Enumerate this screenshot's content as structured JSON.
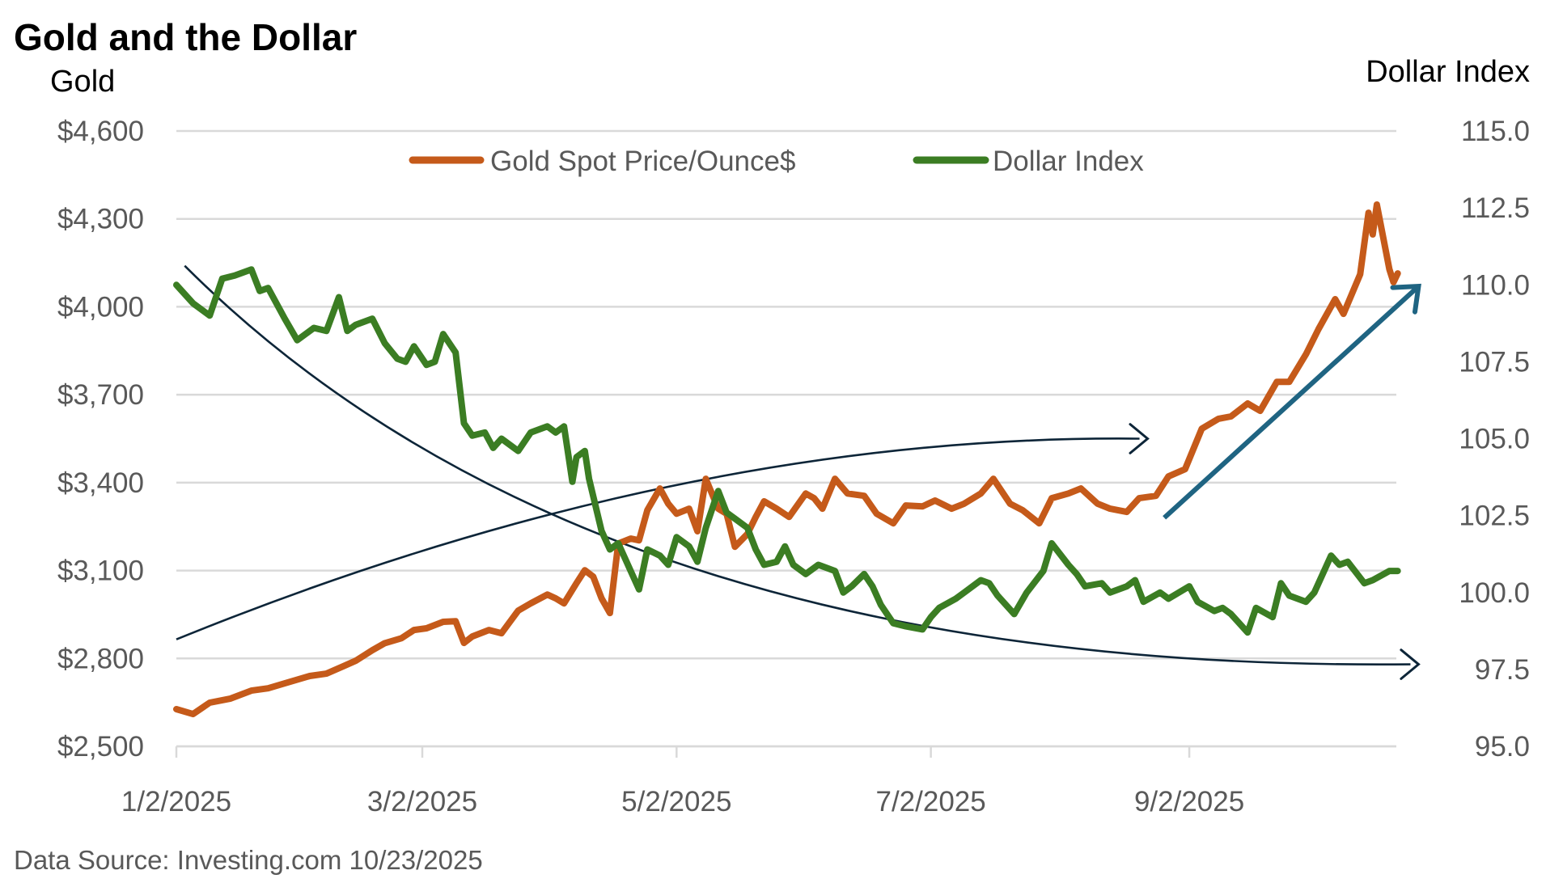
{
  "chart_data": {
    "type": "line",
    "title": "Gold and the Dollar",
    "y_left_label": "Gold",
    "y_right_label": "Dollar Index",
    "y_left_ticks": [
      "$4,600",
      "$4,300",
      "$4,000",
      "$3,700",
      "$3,400",
      "$3,100",
      "$2,800",
      "$2,500"
    ],
    "y_left_tick_values": [
      4600,
      4300,
      4000,
      3700,
      3400,
      3100,
      2800,
      2500
    ],
    "y_right_ticks": [
      "115.0",
      "112.5",
      "110.0",
      "107.5",
      "105.0",
      "102.5",
      "100.0",
      "97.5",
      "95.0"
    ],
    "y_right_tick_values": [
      115.0,
      112.5,
      110.0,
      107.5,
      105.0,
      102.5,
      100.0,
      97.5,
      95.0
    ],
    "ylim_left": [
      2500,
      4600
    ],
    "ylim_right": [
      95.0,
      115.0
    ],
    "x_ticks": [
      "1/2/2025",
      "3/2/2025",
      "5/2/2025",
      "7/2/2025",
      "9/2/2025"
    ],
    "x_tick_dates": [
      "2025-01-02",
      "2025-03-02",
      "2025-05-02",
      "2025-07-02",
      "2025-09-02"
    ],
    "xlim": [
      "2025-01-02",
      "2025-11-05"
    ],
    "grid": true,
    "legend_position": "top-center",
    "legend": [
      {
        "name": "Gold Spot Price/Ounce$",
        "color": "#C55A1A",
        "axis": "left"
      },
      {
        "name": "Dollar Index",
        "color": "#3B7D23",
        "axis": "right"
      }
    ],
    "series": [
      {
        "name": "Gold Spot Price/Ounce$",
        "axis": "left",
        "color": "#C55A1A",
        "x": [
          "2025-01-02",
          "2025-01-06",
          "2025-01-10",
          "2025-01-15",
          "2025-01-20",
          "2025-01-24",
          "2025-01-28",
          "2025-02-03",
          "2025-02-07",
          "2025-02-11",
          "2025-02-14",
          "2025-02-18",
          "2025-02-21",
          "2025-02-25",
          "2025-02-28",
          "2025-03-03",
          "2025-03-05",
          "2025-03-07",
          "2025-03-10",
          "2025-03-12",
          "2025-03-14",
          "2025-03-18",
          "2025-03-21",
          "2025-03-25",
          "2025-03-28",
          "2025-04-01",
          "2025-04-03",
          "2025-04-05",
          "2025-04-08",
          "2025-04-10",
          "2025-04-12",
          "2025-04-14",
          "2025-04-16",
          "2025-04-18",
          "2025-04-21",
          "2025-04-23",
          "2025-04-25",
          "2025-04-28",
          "2025-04-30",
          "2025-05-02",
          "2025-05-05",
          "2025-05-07",
          "2025-05-09",
          "2025-05-12",
          "2025-05-14",
          "2025-05-16",
          "2025-05-19",
          "2025-05-21",
          "2025-05-23",
          "2025-05-26",
          "2025-05-29",
          "2025-06-02",
          "2025-06-04",
          "2025-06-06",
          "2025-06-09",
          "2025-06-12",
          "2025-06-16",
          "2025-06-19",
          "2025-06-23",
          "2025-06-26",
          "2025-06-30",
          "2025-07-03",
          "2025-07-07",
          "2025-07-10",
          "2025-07-14",
          "2025-07-17",
          "2025-07-21",
          "2025-07-24",
          "2025-07-28",
          "2025-07-31",
          "2025-08-04",
          "2025-08-07",
          "2025-08-11",
          "2025-08-14",
          "2025-08-18",
          "2025-08-21",
          "2025-08-25",
          "2025-08-28",
          "2025-09-01",
          "2025-09-03",
          "2025-09-05",
          "2025-09-09",
          "2025-09-12",
          "2025-09-16",
          "2025-09-19",
          "2025-09-23",
          "2025-09-26",
          "2025-09-30",
          "2025-10-03",
          "2025-10-07",
          "2025-10-09",
          "2025-10-13",
          "2025-10-15",
          "2025-10-16",
          "2025-10-17",
          "2025-10-20",
          "2025-10-21",
          "2025-10-22"
        ],
        "values": [
          2627,
          2610,
          2649,
          2663,
          2690,
          2698,
          2715,
          2740,
          2748,
          2773,
          2792,
          2828,
          2852,
          2869,
          2897,
          2903,
          2914,
          2925,
          2927,
          2853,
          2875,
          2897,
          2886,
          2963,
          2988,
          3018,
          3005,
          2988,
          3057,
          3101,
          3079,
          3005,
          2955,
          3192,
          3209,
          3203,
          3306,
          3380,
          3328,
          3294,
          3311,
          3234,
          3413,
          3311,
          3294,
          3181,
          3225,
          3283,
          3336,
          3311,
          3283,
          3363,
          3347,
          3311,
          3413,
          3363,
          3355,
          3294,
          3261,
          3322,
          3319,
          3339,
          3311,
          3328,
          3363,
          3413,
          3328,
          3306,
          3261,
          3347,
          3363,
          3380,
          3328,
          3311,
          3300,
          3347,
          3355,
          3421,
          3446,
          3515,
          3584,
          3618,
          3626,
          3670,
          3645,
          3744,
          3744,
          3838,
          3924,
          4026,
          3976,
          4111,
          4321,
          4247,
          4349,
          4128,
          4084,
          4114
        ]
      },
      {
        "name": "Dollar Index",
        "axis": "right",
        "color": "#3B7D23",
        "x": [
          "2025-01-02",
          "2025-01-06",
          "2025-01-10",
          "2025-01-13",
          "2025-01-16",
          "2025-01-20",
          "2025-01-22",
          "2025-01-24",
          "2025-01-28",
          "2025-01-31",
          "2025-02-04",
          "2025-02-07",
          "2025-02-10",
          "2025-02-12",
          "2025-02-14",
          "2025-02-18",
          "2025-02-21",
          "2025-02-24",
          "2025-02-26",
          "2025-02-28",
          "2025-03-03",
          "2025-03-05",
          "2025-03-07",
          "2025-03-10",
          "2025-03-12",
          "2025-03-14",
          "2025-03-17",
          "2025-03-19",
          "2025-03-21",
          "2025-03-25",
          "2025-03-28",
          "2025-04-01",
          "2025-04-03",
          "2025-04-05",
          "2025-04-07",
          "2025-04-08",
          "2025-04-10",
          "2025-04-11",
          "2025-04-14",
          "2025-04-16",
          "2025-04-18",
          "2025-04-21",
          "2025-04-23",
          "2025-04-25",
          "2025-04-28",
          "2025-04-30",
          "2025-05-02",
          "2025-05-05",
          "2025-05-07",
          "2025-05-09",
          "2025-05-12",
          "2025-05-14",
          "2025-05-16",
          "2025-05-19",
          "2025-05-21",
          "2025-05-23",
          "2025-05-26",
          "2025-05-28",
          "2025-05-30",
          "2025-06-02",
          "2025-06-05",
          "2025-06-09",
          "2025-06-11",
          "2025-06-13",
          "2025-06-16",
          "2025-06-18",
          "2025-06-20",
          "2025-06-23",
          "2025-06-26",
          "2025-06-30",
          "2025-07-02",
          "2025-07-04",
          "2025-07-08",
          "2025-07-10",
          "2025-07-14",
          "2025-07-16",
          "2025-07-18",
          "2025-07-22",
          "2025-07-25",
          "2025-07-29",
          "2025-07-31",
          "2025-08-04",
          "2025-08-06",
          "2025-08-08",
          "2025-08-12",
          "2025-08-14",
          "2025-08-18",
          "2025-08-20",
          "2025-08-22",
          "2025-08-26",
          "2025-08-28",
          "2025-09-02",
          "2025-09-04",
          "2025-09-08",
          "2025-09-10",
          "2025-09-12",
          "2025-09-16",
          "2025-09-18",
          "2025-09-22",
          "2025-09-24",
          "2025-09-26",
          "2025-09-30",
          "2025-10-02",
          "2025-10-06",
          "2025-10-08",
          "2025-10-10",
          "2025-10-14",
          "2025-10-16",
          "2025-10-20",
          "2025-10-22"
        ],
        "values": [
          110.0,
          109.4,
          109.0,
          110.2,
          110.3,
          110.5,
          109.8,
          109.9,
          108.9,
          108.2,
          108.6,
          108.5,
          109.6,
          108.5,
          108.7,
          108.9,
          108.1,
          107.6,
          107.5,
          108.0,
          107.4,
          107.5,
          108.4,
          107.8,
          105.5,
          105.1,
          105.2,
          104.7,
          105.0,
          104.6,
          105.2,
          105.4,
          105.2,
          105.4,
          103.6,
          104.4,
          104.6,
          103.7,
          102.0,
          101.4,
          101.6,
          100.7,
          100.1,
          101.4,
          101.2,
          100.9,
          101.8,
          101.5,
          101.0,
          102.1,
          103.3,
          102.6,
          102.4,
          102.1,
          101.4,
          100.9,
          101.0,
          101.5,
          100.9,
          100.6,
          100.9,
          100.7,
          100.0,
          100.2,
          100.6,
          100.2,
          99.6,
          99.0,
          98.9,
          98.8,
          99.2,
          99.5,
          99.8,
          100.0,
          100.4,
          100.3,
          99.9,
          99.3,
          100.0,
          100.7,
          101.6,
          100.9,
          100.6,
          100.2,
          100.3,
          100.0,
          100.2,
          100.4,
          99.7,
          100.0,
          99.8,
          100.2,
          99.7,
          99.4,
          99.5,
          99.3,
          98.7,
          99.5,
          99.2,
          100.3,
          99.9,
          99.7,
          100.0,
          101.2,
          100.9,
          101.0,
          100.3,
          100.4,
          100.7,
          100.7
        ]
      }
    ],
    "annotations": [
      {
        "type": "curved-arrow",
        "description": "Dollar decline trend",
        "color": "#0D2538",
        "from": {
          "date": "2025-01-04",
          "axis": "left",
          "value": 4140
        },
        "to": {
          "date": "2025-10-27",
          "axis": "left",
          "value": 2780
        }
      },
      {
        "type": "curved-arrow",
        "description": "Gold flattening trend",
        "color": "#0D2538",
        "from": {
          "date": "2025-01-02",
          "axis": "left",
          "value": 2865
        },
        "to": {
          "date": "2025-08-23",
          "axis": "left",
          "value": 3550
        }
      },
      {
        "type": "straight-arrow",
        "description": "Gold breakout",
        "color": "#1F6482",
        "from": {
          "date": "2025-08-27",
          "axis": "left",
          "value": 3280
        },
        "to": {
          "date": "2025-10-27",
          "axis": "left",
          "value": 4070
        }
      }
    ],
    "source": "Data Source: Investing.com 10/23/2025"
  }
}
